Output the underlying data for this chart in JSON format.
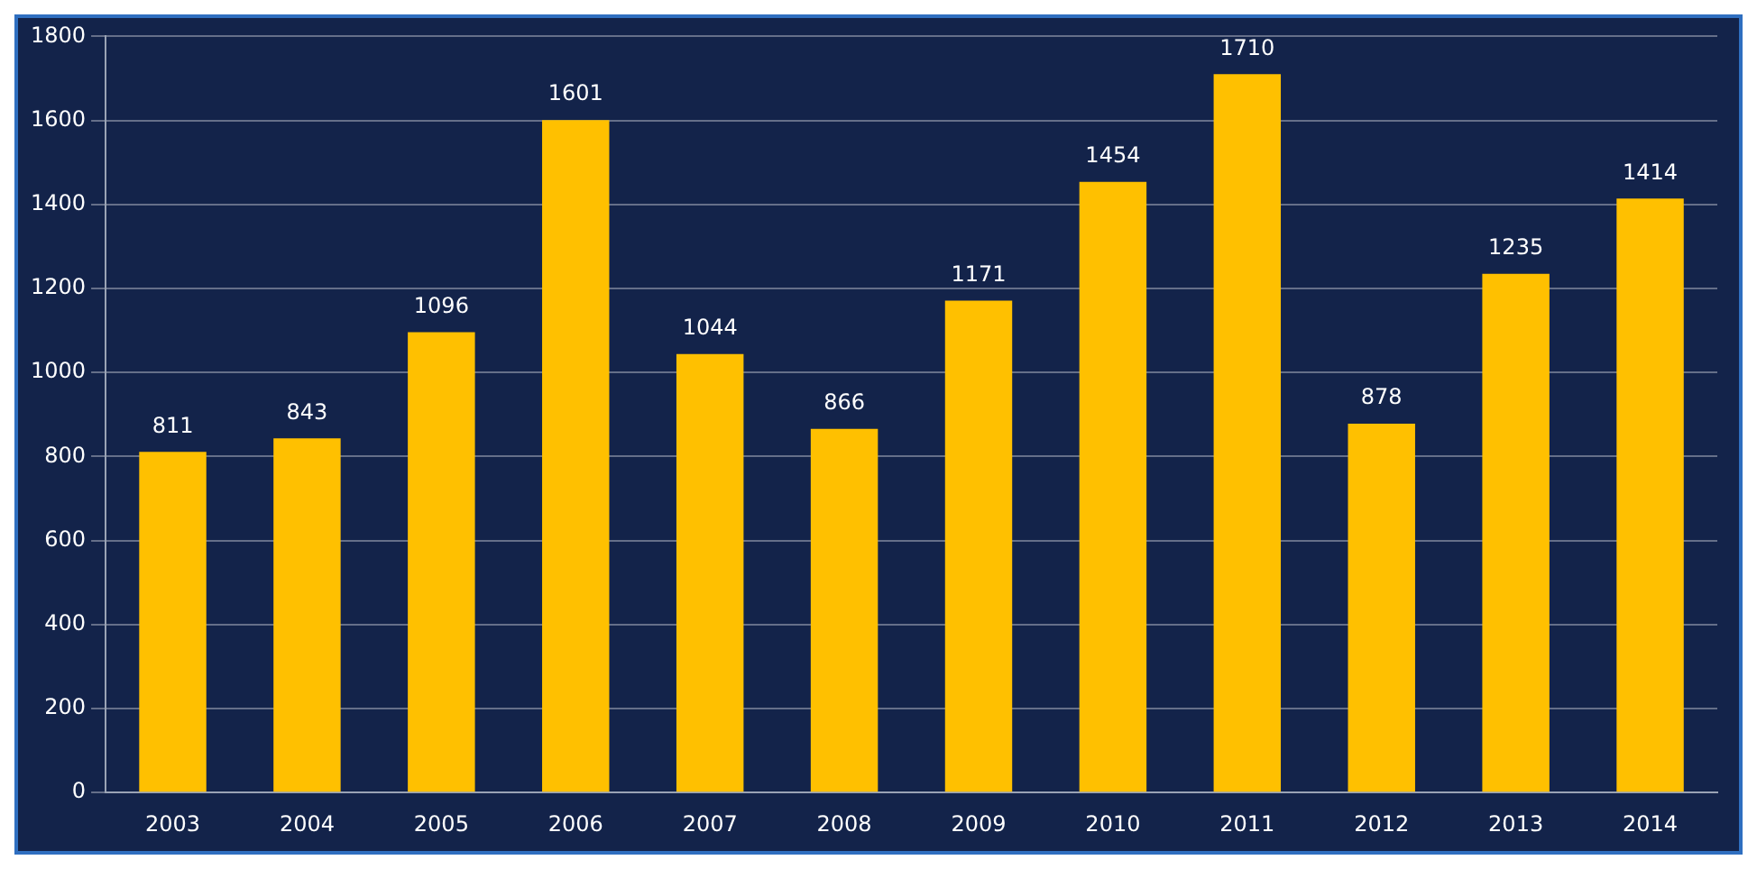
{
  "chart_data": {
    "type": "bar",
    "categories": [
      "2003",
      "2004",
      "2005",
      "2006",
      "2007",
      "2008",
      "2009",
      "2010",
      "2011",
      "2012",
      "2013",
      "2014"
    ],
    "values": [
      811,
      843,
      1096,
      1601,
      1044,
      866,
      1171,
      1454,
      1710,
      878,
      1235,
      1414
    ],
    "color": "#ffc000",
    "ylim": [
      0,
      1800
    ],
    "yticks": [
      0,
      200,
      400,
      600,
      800,
      1000,
      1200,
      1400,
      1600,
      1800
    ],
    "grid": "y",
    "data_labels": true
  }
}
